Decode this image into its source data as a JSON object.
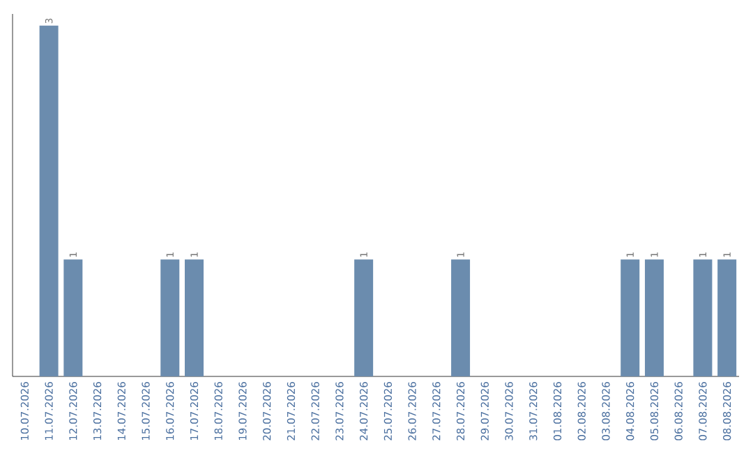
{
  "chart_data": {
    "type": "bar",
    "categories": [
      "10.07.2026",
      "11.07.2026",
      "12.07.2026",
      "13.07.2026",
      "14.07.2026",
      "15.07.2026",
      "16.07.2026",
      "17.07.2026",
      "18.07.2026",
      "19.07.2026",
      "20.07.2026",
      "21.07.2026",
      "22.07.2026",
      "23.07.2026",
      "24.07.2026",
      "25.07.2026",
      "26.07.2026",
      "27.07.2026",
      "28.07.2026",
      "29.07.2026",
      "30.07.2026",
      "31.07.2026",
      "01.08.2026",
      "02.08.2026",
      "03.08.2026",
      "04.08.2026",
      "05.08.2026",
      "06.08.2026",
      "07.08.2026",
      "08.08.2026"
    ],
    "values": [
      0,
      3,
      1,
      0,
      0,
      0,
      1,
      1,
      0,
      0,
      0,
      0,
      0,
      0,
      1,
      0,
      0,
      0,
      1,
      0,
      0,
      0,
      0,
      0,
      0,
      1,
      1,
      0,
      1,
      1
    ],
    "value_labels": [
      null,
      "3",
      "1",
      null,
      null,
      null,
      "1",
      "1",
      null,
      null,
      null,
      null,
      null,
      null,
      "1",
      null,
      null,
      null,
      "1",
      null,
      null,
      null,
      null,
      null,
      null,
      "1",
      "1",
      null,
      "1",
      "1"
    ],
    "color": "#6b8cae",
    "ylim": [
      0,
      3.1
    ],
    "tick_labels": "x"
  }
}
